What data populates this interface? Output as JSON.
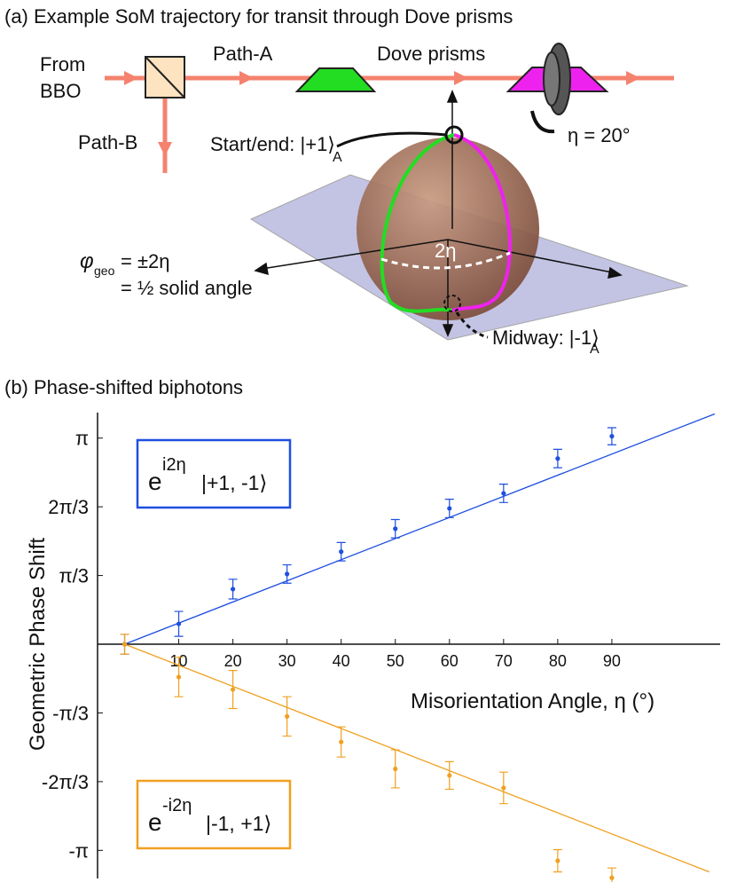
{
  "panel_a": {
    "title": "(a) Example SoM trajectory for transit through Dove prisms",
    "source_line1": "From",
    "source_line2": "BBO",
    "path_a": "Path-A",
    "prisms": "Dove prisms",
    "path_b": "Path-B",
    "rotation": "η = 20°",
    "start_label": "Start/end: |+1⟩",
    "start_sub": "A",
    "arc_label": "2η",
    "phase_symbol": "φ",
    "phase_sub": "geo",
    "phase_eq1": "= ±2η",
    "phase_eq2": "= ½ solid angle",
    "mid_label": "Midway: |-1⟩",
    "mid_sub": "A"
  },
  "panel_b": {
    "title": "(b) Phase-shifted biphotons"
  },
  "chart_data": {
    "type": "scatter",
    "y_label": "Geometric Phase Shift",
    "x_label": "Misorientation Angle, η (°)",
    "xlim": [
      -5,
      110
    ],
    "ylim": [
      -3.57,
      3.53
    ],
    "xticks": [
      10,
      20,
      30,
      40,
      50,
      60,
      70,
      80,
      90
    ],
    "yticks": [
      {
        "value": 3.1416,
        "label": "π"
      },
      {
        "value": 2.0944,
        "label": "2π/3"
      },
      {
        "value": 1.0472,
        "label": "π/3"
      },
      {
        "value": -1.0472,
        "label": "-π/3"
      },
      {
        "value": -2.0944,
        "label": "-2π/3"
      },
      {
        "value": -3.1416,
        "label": "-π"
      }
    ],
    "series": [
      {
        "name": "|+1, -1⟩",
        "prefix": "e",
        "exponent": "i2η",
        "color": "#1f4fe0",
        "x": [
          0,
          10,
          20,
          30,
          40,
          50,
          60,
          70,
          80,
          90
        ],
        "values": [
          0,
          0.31,
          0.84,
          1.07,
          1.41,
          1.76,
          2.07,
          2.3,
          2.83,
          3.17
        ],
        "errors": [
          0.15,
          0.19,
          0.15,
          0.14,
          0.14,
          0.14,
          0.14,
          0.14,
          0.14,
          0.13
        ],
        "fit_x": [
          0,
          109
        ],
        "fit_values": [
          0,
          3.51
        ]
      },
      {
        "name": "|-1, +1⟩",
        "prefix": "e",
        "exponent": "-i2η",
        "color": "#f0a020",
        "x": [
          0,
          10,
          20,
          30,
          40,
          50,
          60,
          70,
          80,
          90
        ],
        "values": [
          0,
          -0.5,
          -0.69,
          -1.1,
          -1.49,
          -1.9,
          -2.0,
          -2.19,
          -3.3,
          -3.56
        ],
        "errors": [
          0.15,
          0.3,
          0.29,
          0.3,
          0.23,
          0.29,
          0.21,
          0.24,
          0.17,
          0.15
        ],
        "fit_x": [
          0,
          108
        ],
        "fit_values": [
          0,
          -3.47
        ]
      }
    ]
  }
}
